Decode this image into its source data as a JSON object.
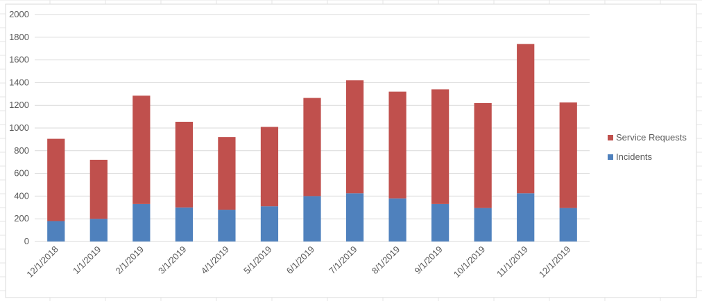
{
  "chart_data": {
    "type": "bar",
    "stacked": true,
    "categories": [
      "12/1/2018",
      "1/1/2019",
      "2/1/2019",
      "3/1/2019",
      "4/1/2019",
      "5/1/2019",
      "6/1/2019",
      "7/1/2019",
      "8/1/2019",
      "9/1/2019",
      "10/1/2019",
      "11/1/2019",
      "12/1/2019"
    ],
    "series": [
      {
        "name": "Incidents",
        "color": "#4f81bd",
        "values": [
          180,
          200,
          330,
          300,
          280,
          310,
          400,
          425,
          380,
          330,
          295,
          425,
          295
        ]
      },
      {
        "name": "Service Requests",
        "color": "#c0504d",
        "values": [
          725,
          520,
          955,
          755,
          640,
          700,
          865,
          995,
          940,
          1010,
          925,
          1315,
          930
        ]
      }
    ],
    "title": "",
    "xlabel": "",
    "ylabel": "",
    "ylim": [
      0,
      2000
    ],
    "yticks": [
      0,
      200,
      400,
      600,
      800,
      1000,
      1200,
      1400,
      1600,
      1800,
      2000
    ],
    "grid": true,
    "legend_position": "right"
  }
}
